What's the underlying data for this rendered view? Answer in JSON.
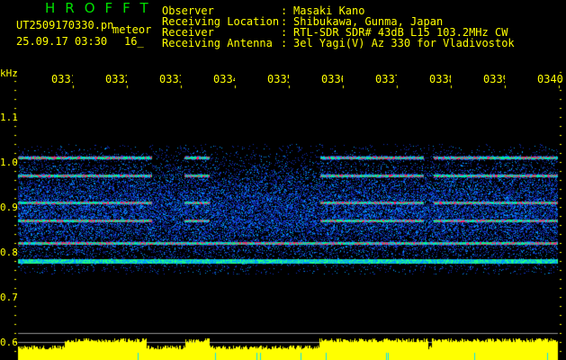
{
  "app": {
    "title": "HROFFT"
  },
  "file": {
    "name": "UT2509170330.pn",
    "mode": "meteor",
    "datetime": "25.09.17 03:30",
    "count": "16_"
  },
  "info": [
    {
      "label": "Observer",
      "value": "Masaki Kano"
    },
    {
      "label": "Receiving Location",
      "value": "Shibukawa, Gunma, Japan"
    },
    {
      "label": "Receiver",
      "value": "RTL-SDR SDR# 43dB L15 103.2MHz CW"
    },
    {
      "label": "Receiving Antenna",
      "value": "3el Yagi(V) Az 330 for Vladivostok"
    }
  ],
  "axis": {
    "y_unit": "kHz",
    "y_ticks": [
      "1.1",
      "1.0",
      "0.9",
      "0.8",
      "0.7",
      "0.6"
    ],
    "x_ticks": [
      "0331",
      "0332",
      "0333",
      "0334",
      "0335",
      "0336",
      "0337",
      "0338",
      "0339",
      "0340"
    ]
  },
  "spectrogram": {
    "carrier_bands_khz": [
      1.01,
      0.97,
      0.91,
      0.87,
      0.82,
      0.78
    ],
    "colors": {
      "signal_high": "#ff2060",
      "signal_mid": "#00ff80",
      "noise": "#1030c0",
      "level": "#ffff00",
      "level_low": "#00e0ff"
    }
  }
}
